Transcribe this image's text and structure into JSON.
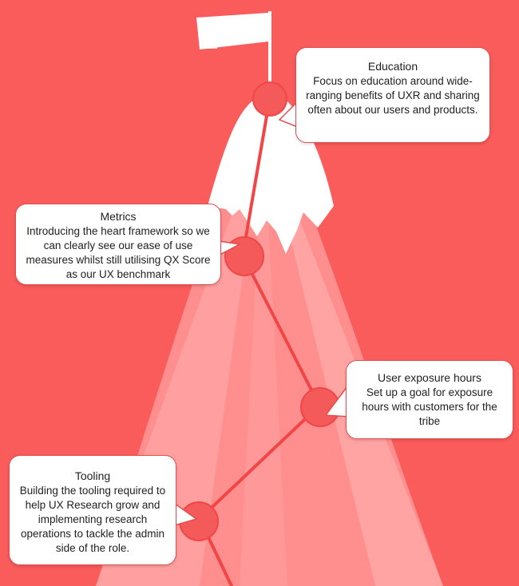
{
  "colors": {
    "background": "#fa5b5b",
    "mountain_light": "#ff8c8c",
    "mountain_mid": "#ff9e9e",
    "snow": "#ffffff",
    "path_line": "#f43f3f",
    "milestone": "#f45a5a",
    "flag": "#ffffff"
  },
  "milestones": [
    {
      "id": "education",
      "title": "Education",
      "body": "Focus on education around wide-ranging benefits of UXR and sharing often about our users and products."
    },
    {
      "id": "metrics",
      "title": "Metrics",
      "body": "Introducing the heart framework so we can clearly see our ease of use measures whilst still utilising QX Score as our UX benchmark"
    },
    {
      "id": "user-exposure-hours",
      "title": "User exposure hours",
      "body": "Set up a goal for exposure hours with customers for the tribe"
    },
    {
      "id": "tooling",
      "title": "Tooling",
      "body": "Building the tooling required to help UX Research grow and implementing research operations to tackle the admin side of the role."
    }
  ]
}
